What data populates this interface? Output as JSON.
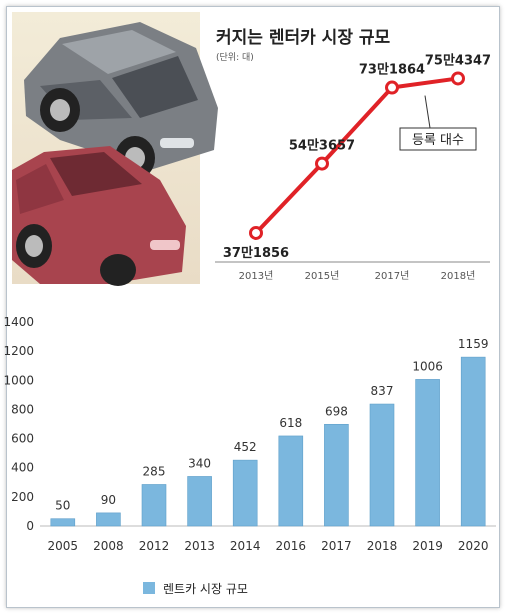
{
  "chart_data": [
    {
      "type": "line",
      "title": "커지는 렌터카 시장 규모",
      "subtitle": "(단위: 대)",
      "categories": [
        "2013년",
        "2015년",
        "2017년",
        "2018년"
      ],
      "series": [
        {
          "name": "등록 대수",
          "values": [
            371856,
            543657,
            731864,
            754347
          ],
          "labels": [
            "37만1856",
            "54만3657",
            "73만1864",
            "75만4347"
          ]
        }
      ],
      "ylim": [
        300000,
        800000
      ],
      "colors": {
        "line": "#e02227",
        "marker_fill": "#ffffff"
      }
    },
    {
      "type": "bar",
      "categories": [
        "2005",
        "2008",
        "2012",
        "2013",
        "2014",
        "2016",
        "2017",
        "2018",
        "2019",
        "2020"
      ],
      "series": [
        {
          "name": "렌트카 시장 규모",
          "values": [
            50,
            90,
            285,
            340,
            452,
            618,
            698,
            837,
            1006,
            1159
          ]
        }
      ],
      "yticks": [
        "0",
        "200",
        "400",
        "600",
        "800",
        "1000",
        "1200",
        "1400"
      ],
      "ylim": [
        0,
        1400
      ],
      "legend": "bottom-left",
      "colors": {
        "bar": "#7bb7de",
        "bar_edge": "#5f9fc9"
      }
    }
  ]
}
